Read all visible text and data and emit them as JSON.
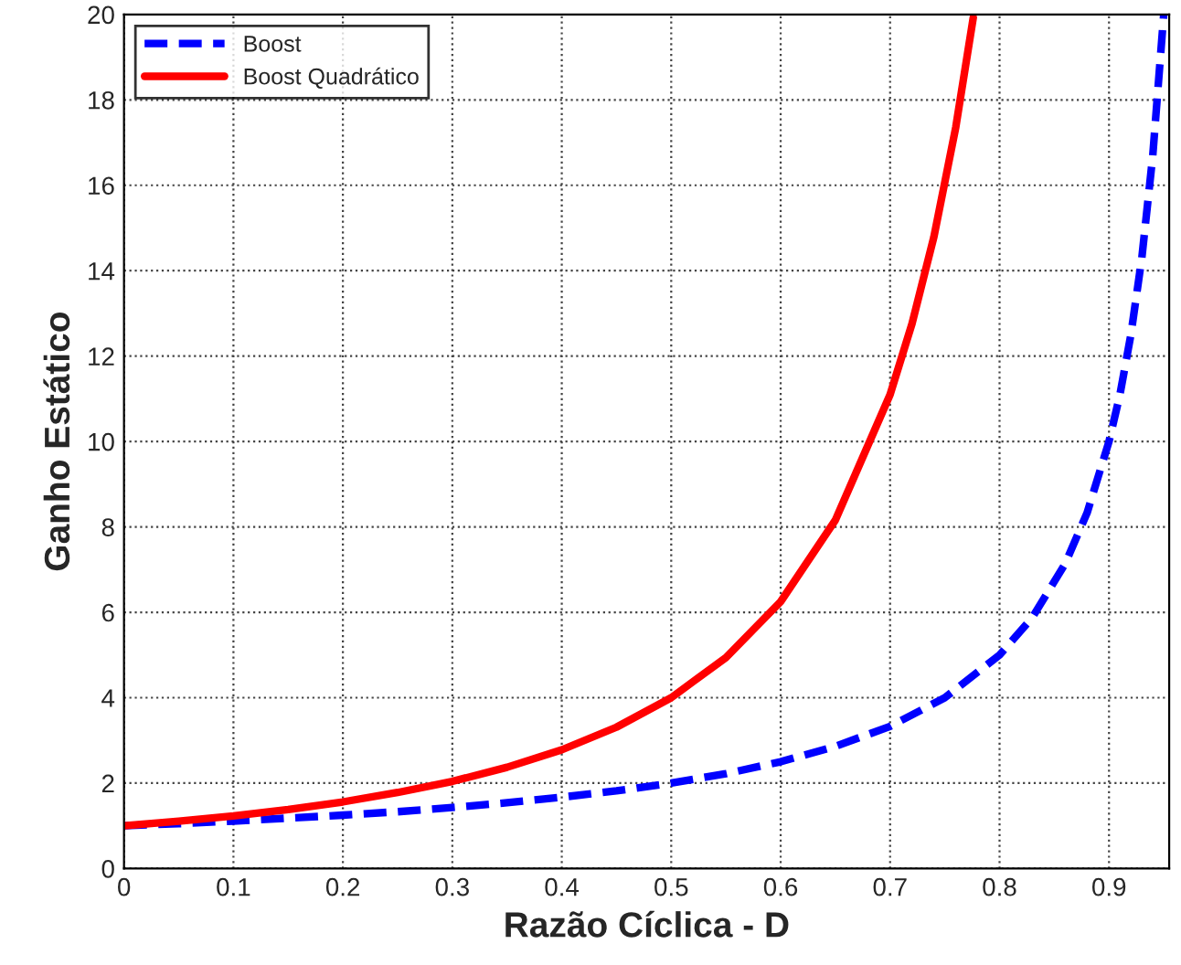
{
  "chart_data": {
    "type": "line",
    "xlabel": "Razão Cíclica - D",
    "ylabel": "Ganho Estático",
    "xlim": [
      0,
      0.955
    ],
    "xticks": [
      0,
      0.1,
      0.2,
      0.3,
      0.4,
      0.5,
      0.6,
      0.7,
      0.8,
      0.9
    ],
    "ylim": [
      0,
      20
    ],
    "yticks": [
      0,
      2,
      4,
      6,
      8,
      10,
      12,
      14,
      16,
      18,
      20
    ],
    "grid": true,
    "legend": "top left",
    "series": [
      {
        "name": "Boost",
        "color": "#0000ff",
        "line_style": "dashed",
        "x": [
          0,
          0.05,
          0.1,
          0.15,
          0.2,
          0.25,
          0.3,
          0.35,
          0.4,
          0.45,
          0.5,
          0.55,
          0.6,
          0.65,
          0.7,
          0.75,
          0.8,
          0.83,
          0.86,
          0.88,
          0.9,
          0.91,
          0.92,
          0.93,
          0.94,
          0.95
        ],
        "values": [
          1,
          1.05,
          1.11,
          1.18,
          1.25,
          1.33,
          1.43,
          1.54,
          1.67,
          1.82,
          2,
          2.22,
          2.5,
          2.86,
          3.33,
          4,
          5,
          5.88,
          7.14,
          8.33,
          10,
          11.1,
          12.5,
          14.3,
          16.7,
          20
        ]
      },
      {
        "name": "Boost Quadrático",
        "color": "#ff0000",
        "line_style": "solid",
        "x": [
          0,
          0.05,
          0.1,
          0.15,
          0.2,
          0.25,
          0.3,
          0.35,
          0.4,
          0.45,
          0.5,
          0.55,
          0.6,
          0.65,
          0.7,
          0.72,
          0.74,
          0.76,
          0.776
        ],
        "values": [
          1,
          1.11,
          1.23,
          1.38,
          1.56,
          1.78,
          2.04,
          2.37,
          2.78,
          3.31,
          4,
          4.94,
          6.25,
          8.16,
          11.1,
          12.76,
          14.79,
          17.36,
          19.93
        ]
      }
    ]
  }
}
